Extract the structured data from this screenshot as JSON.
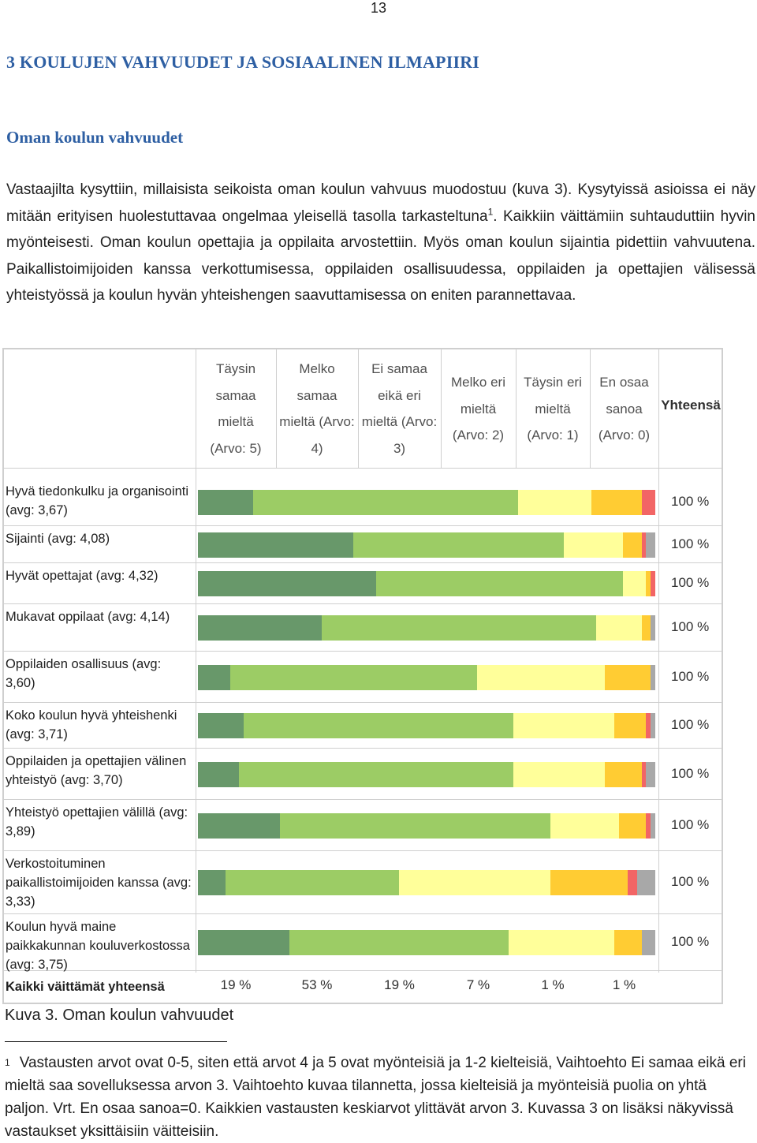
{
  "page_number": "13",
  "section_heading": "3 KOULUJEN VAHVUUDET JA SOSIAALINEN ILMAPIIRI",
  "sub_heading": "Oman koulun vahvuudet",
  "intro": {
    "part1": "Vastaajilta kysyttiin, millaisista seikoista oman koulun vahvuus muodostuu (kuva 3). Kysytyissä asioissa ei näy mitään erityisen huolestuttavaa ongelmaa yleisellä tasolla tarkasteltuna",
    "sup": "1",
    "part2": ". Kaikkiin väittämiin suhtauduttiin hyvin myönteisesti. Oman koulun opettajia ja oppilaita arvostettiin. Myös oman koulun sijaintia pidettiin vahvuutena. Paikallistoimijoiden kanssa verkottumisessa, oppilaiden osallisuudessa, oppilaiden ja opettajien välisessä yhteistyössä ja koulun hyvän yhteishengen saavuttamisessa on eniten parannettavaa."
  },
  "headers": [
    {
      "text": "Täysin samaa mieltä (Arvo: 5)"
    },
    {
      "text": "Melko samaa mieltä (Arvo: 4)"
    },
    {
      "text": "Ei samaa eikä eri mieltä (Arvo: 3)"
    },
    {
      "text": "Melko eri mieltä (Arvo: 2)"
    },
    {
      "text": "Täysin eri mieltä (Arvo: 1)"
    },
    {
      "text": "En osaa sanoa (Arvo: 0)"
    }
  ],
  "total_header": "Yhteensä",
  "colors": [
    "#68986a",
    "#9ccc65",
    "#ffff9a",
    "#ffcc33",
    "#f26565",
    "#a8a8a8"
  ],
  "chart_data": {
    "type": "bar",
    "stacked": true,
    "orientation": "horizontal",
    "series_names": [
      "Täysin samaa mieltä (Arvo: 5)",
      "Melko samaa mieltä (Arvo: 4)",
      "Ei samaa eikä eri mieltä (Arvo: 3)",
      "Melko eri mieltä (Arvo: 2)",
      "Täysin eri mieltä (Arvo: 1)",
      "En osaa sanoa (Arvo: 0)"
    ],
    "rows": [
      {
        "label": "Hyvä tiedonkulku ja organisointi (avg: 3,67)",
        "values": [
          12,
          58,
          16,
          11,
          3,
          0
        ],
        "total": "100 %"
      },
      {
        "label": "Sijainti (avg: 4,08)",
        "values": [
          34,
          46,
          13,
          4,
          1,
          2
        ],
        "total": "100 %"
      },
      {
        "label": "Hyvät opettajat (avg: 4,32)",
        "values": [
          39,
          54,
          5,
          1,
          1,
          0
        ],
        "total": "100 %"
      },
      {
        "label": "Mukavat oppilaat (avg: 4,14)",
        "values": [
          27,
          60,
          10,
          2,
          0,
          1
        ],
        "total": "100 %"
      },
      {
        "label": "Oppilaiden osallisuus (avg: 3,60)",
        "values": [
          7,
          54,
          28,
          10,
          0,
          1
        ],
        "total": "100 %"
      },
      {
        "label": "Koko koulun hyvä yhteishenki (avg: 3,71)",
        "values": [
          10,
          59,
          22,
          7,
          1,
          1
        ],
        "total": "100 %"
      },
      {
        "label": "Oppilaiden ja opettajien välinen yhteistyö (avg: 3,70)",
        "values": [
          9,
          60,
          20,
          8,
          1,
          2
        ],
        "total": "100 %"
      },
      {
        "label": "Yhteistyö opettajien välillä (avg: 3,89)",
        "values": [
          18,
          59,
          15,
          6,
          1,
          1
        ],
        "total": "100 %"
      },
      {
        "label": "Verkostoituminen paikallistoimijoiden kanssa (avg: 3,33)",
        "values": [
          6,
          38,
          33,
          17,
          2,
          4
        ],
        "total": "100 %"
      },
      {
        "label": "Koulun hyvä maine paikkakunnan kouluverkostossa (avg: 3,75)",
        "values": [
          20,
          48,
          23,
          6,
          0,
          3
        ],
        "total": "100 %"
      }
    ],
    "xlim": [
      0,
      100
    ]
  },
  "summary": {
    "label": "Kaikki väittämät yhteensä",
    "values": [
      "19 %",
      "53 %",
      "19 %",
      "7 %",
      "1 %",
      "1 %"
    ]
  },
  "caption": "Kuva 3. Oman koulun vahvuudet",
  "footnote": {
    "mark": "1",
    "text": "Vastausten arvot ovat 0-5, siten että arvot 4 ja 5 ovat myönteisiä ja 1-2 kielteisiä, Vaihtoehto Ei samaa eikä eri mieltä saa sovelluksessa arvon 3. Vaihtoehto kuvaa tilannetta, jossa kielteisiä ja myönteisiä puolia on yhtä paljon. Vrt. En osaa sanoa=0. Kaikkien vastausten keskiarvot ylittävät arvon 3. Kuvassa 3 on lisäksi näkyvissä vastaukset yksittäisiin väitteisiin."
  }
}
